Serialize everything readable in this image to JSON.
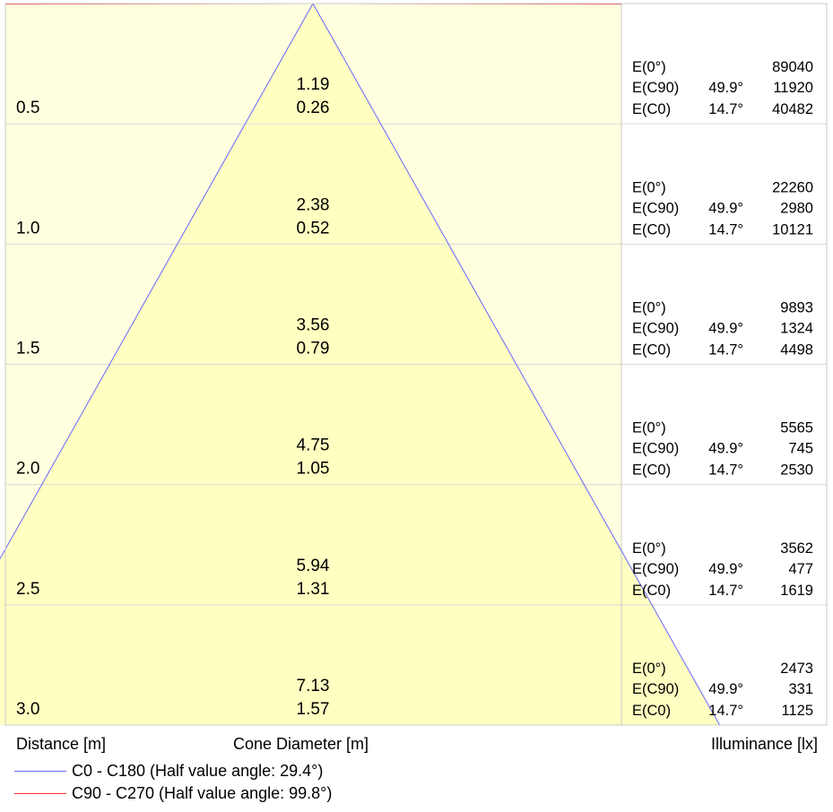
{
  "chart_data": {
    "type": "cone_diagram",
    "rows": [
      {
        "distance": "0.5",
        "c90_diameter": "1.19",
        "c0_diameter": "0.26",
        "e0": "89040",
        "ec90_angle": "49.9°",
        "ec90": "11920",
        "ec0_angle": "14.7°",
        "ec0": "40482"
      },
      {
        "distance": "1.0",
        "c90_diameter": "2.38",
        "c0_diameter": "0.52",
        "e0": "22260",
        "ec90_angle": "49.9°",
        "ec90": "2980",
        "ec0_angle": "14.7°",
        "ec0": "10121"
      },
      {
        "distance": "1.5",
        "c90_diameter": "3.56",
        "c0_diameter": "0.79",
        "e0": "9893",
        "ec90_angle": "49.9°",
        "ec90": "1324",
        "ec0_angle": "14.7°",
        "ec0": "4498"
      },
      {
        "distance": "2.0",
        "c90_diameter": "4.75",
        "c0_diameter": "1.05",
        "e0": "5565",
        "ec90_angle": "49.9°",
        "ec90": "745",
        "ec0_angle": "14.7°",
        "ec0": "2530"
      },
      {
        "distance": "2.5",
        "c90_diameter": "5.94",
        "c0_diameter": "1.31",
        "e0": "3562",
        "ec90_angle": "49.9°",
        "ec90": "477",
        "ec0_angle": "14.7°",
        "ec0": "1619"
      },
      {
        "distance": "3.0",
        "c90_diameter": "7.13",
        "c0_diameter": "1.57",
        "e0": "2473",
        "ec90_angle": "49.9°",
        "ec90": "331",
        "ec0_angle": "14.7°",
        "ec0": "1125"
      }
    ],
    "e_labels": {
      "e0": "E(0°)",
      "ec90": "E(C90)",
      "ec0": "E(C0)"
    },
    "axis_labels": {
      "distance": "Distance [m]",
      "diameter": "Cone Diameter [m]",
      "illuminance": "Illuminance [lx]"
    },
    "series": [
      {
        "name": "C0 - C180 (Half value angle: 29.4°)",
        "half_angle": 29.4,
        "color": "#6666ff"
      },
      {
        "name": "C90 - C270 (Half value angle: 99.8°)",
        "half_angle": 99.8,
        "color": "#ff3333"
      }
    ],
    "colors": {
      "wide_fill": "#ffffe0",
      "narrow_fill": "#ffffc2",
      "grid": "#d9d9d9",
      "frame": "#c8c8c8"
    }
  }
}
